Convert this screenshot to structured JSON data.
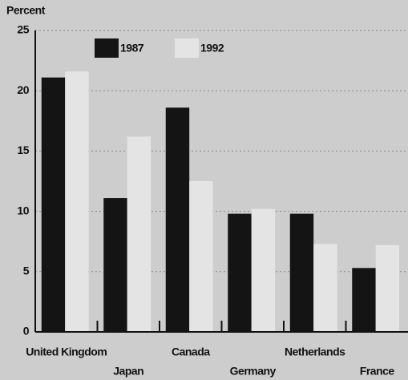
{
  "chart_data": {
    "type": "bar",
    "y_label": "Percent",
    "categories": [
      "United Kingdom",
      "Japan",
      "Canada",
      "Germany",
      "Netherlands",
      "France"
    ],
    "series": [
      {
        "name": "1987",
        "color": "#141414",
        "values": [
          21.1,
          11.1,
          18.6,
          9.8,
          9.8,
          5.3
        ]
      },
      {
        "name": "1992",
        "color": "#e4e4e4",
        "values": [
          21.6,
          16.2,
          12.5,
          10.2,
          7.3,
          7.2
        ]
      }
    ],
    "ylim": [
      0,
      25
    ],
    "yticks": [
      0,
      5,
      10,
      15,
      20,
      25
    ],
    "grid": true
  }
}
